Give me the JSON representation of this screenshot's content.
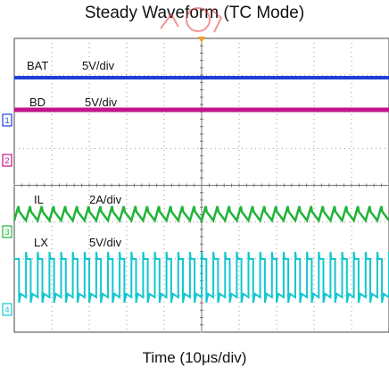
{
  "title": "Steady Waveform (TC Mode)",
  "x_axis_label": "Time (10μs/div)",
  "colors": {
    "bat": "#1f3fd6",
    "bd": "#c4138c",
    "il": "#22b43a",
    "lx": "#14c7cf",
    "grid": "#9a9a9a",
    "trigger": "#f0a020",
    "watermark": "#e03030"
  },
  "markers": [
    "1",
    "2",
    "3",
    "4"
  ],
  "chart_data": {
    "type": "line",
    "title": "Steady Waveform (TC Mode)",
    "xlabel": "Time (10μs/div)",
    "ylabel": "",
    "divisions": {
      "x": 10,
      "y": 8
    },
    "grid": true,
    "switching_pulses_per_screen": 32,
    "series": [
      {
        "name": "BAT",
        "scale": "5V/div",
        "shape": "dc"
      },
      {
        "name": "BD",
        "scale": "5V/div",
        "shape": "dc"
      },
      {
        "name": "IL",
        "scale": "2A/div",
        "shape": "triangle"
      },
      {
        "name": "LX",
        "scale": "5V/div",
        "shape": "square"
      }
    ]
  }
}
